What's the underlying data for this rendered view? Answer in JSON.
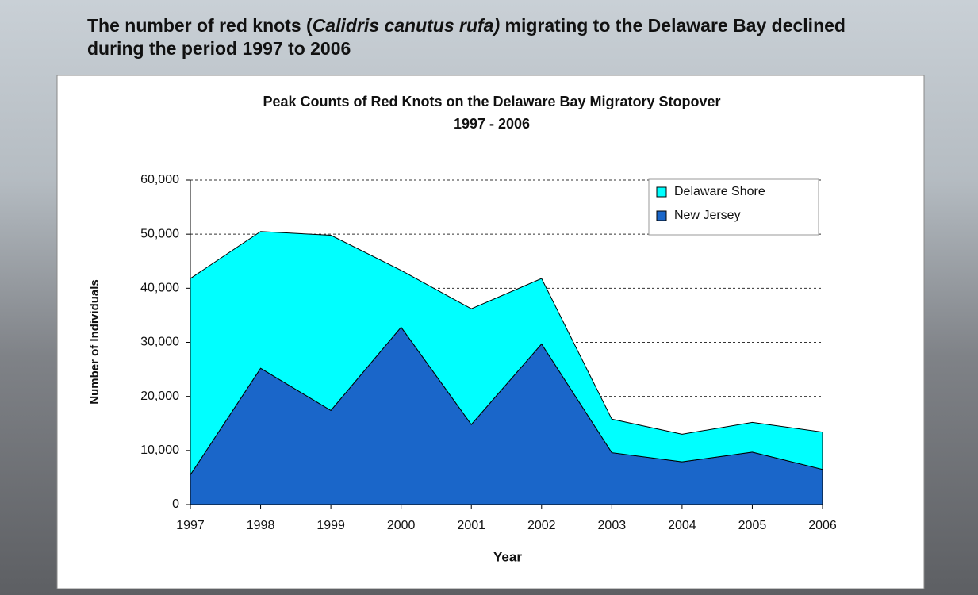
{
  "headline": [
    "The number of red knots (",
    "Calidris canutus rufa)",
    " migrating to the Delaware Bay declined during the period 1997 to 2006"
  ],
  "chart_data": {
    "type": "stacked_area",
    "title": "Peak Counts of Red Knots on the Delaware Bay Migratory Stopover",
    "subtitle": "1997 - 2006",
    "x_label": "Year",
    "y_label": "Number of Individuals",
    "categories": [
      "1997",
      "1998",
      "1999",
      "2000",
      "2001",
      "2002",
      "2003",
      "2004",
      "2005",
      "2006"
    ],
    "series": [
      {
        "name": "New Jersey",
        "color": "#1a66c9",
        "values": [
          5500,
          25200,
          17400,
          32800,
          14800,
          29700,
          9600,
          7900,
          9700,
          6500
        ]
      },
      {
        "name": "Delaware Shore",
        "color": "#00ffff",
        "values": [
          36300,
          25300,
          32400,
          10500,
          21400,
          12100,
          6200,
          5100,
          5500,
          6900
        ]
      }
    ],
    "ylim": [
      0,
      60000
    ],
    "yticks": [
      0,
      {
        "value": 10000,
        "label": "10,000"
      },
      {
        "value": 20000,
        "label": "20,000"
      },
      {
        "value": 30000,
        "label": "30,000"
      },
      {
        "value": 40000,
        "label": "40,000"
      },
      {
        "value": 50000,
        "label": "50,000"
      },
      {
        "value": 60000,
        "label": "60,000"
      }
    ],
    "grid": true,
    "legend": "upper right"
  }
}
